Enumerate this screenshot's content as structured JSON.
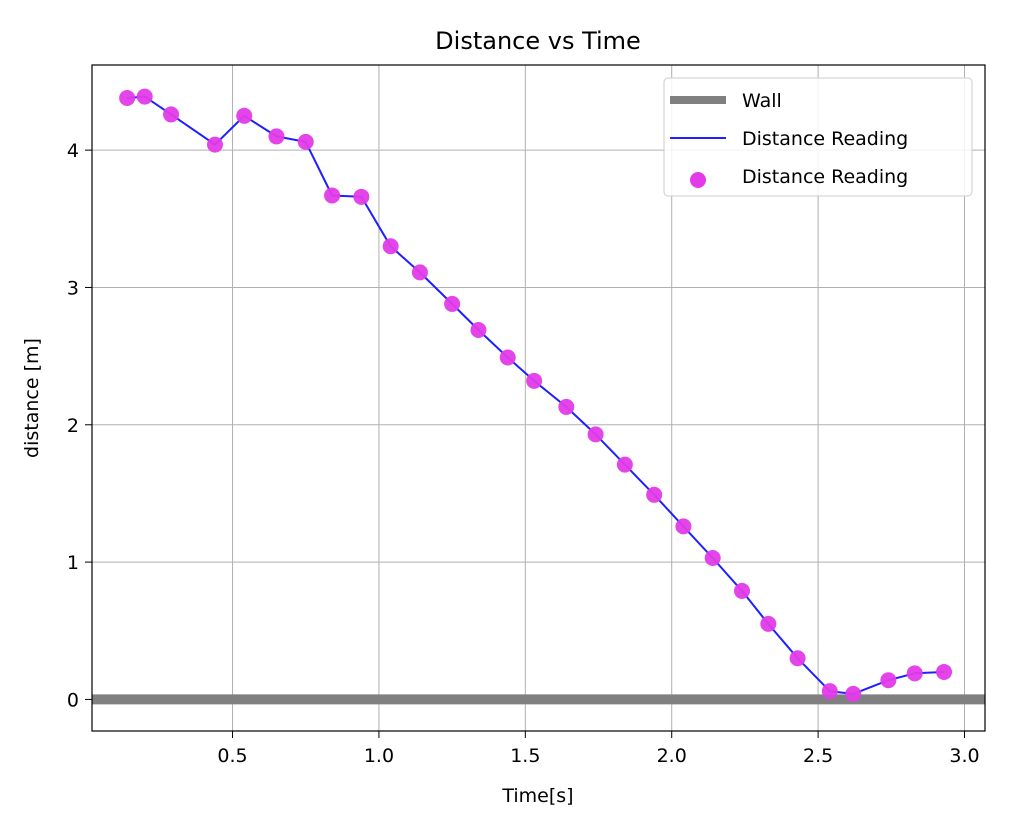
{
  "chart_data": {
    "type": "line",
    "title": "Distance vs Time",
    "xlabel": "Time[s]",
    "ylabel": "distance [m]",
    "xlim": [
      0.02,
      3.07
    ],
    "ylim": [
      -0.23,
      4.62
    ],
    "xticks": [
      0.5,
      1.0,
      1.5,
      2.0,
      2.5,
      3.0
    ],
    "xtick_labels": [
      "0.5",
      "1.0",
      "1.5",
      "2.0",
      "2.5",
      "3.0"
    ],
    "yticks": [
      0,
      1,
      2,
      3,
      4
    ],
    "ytick_labels": [
      "0",
      "1",
      "2",
      "3",
      "4"
    ],
    "grid": true,
    "legend_position": "top-right",
    "wall": {
      "name": "Wall",
      "y": 0,
      "color": "#808080"
    },
    "series": [
      {
        "name": "Distance Reading",
        "kind": "line",
        "color": "#1f1fff",
        "x": [
          0.14,
          0.2,
          0.29,
          0.44,
          0.54,
          0.65,
          0.75,
          0.84,
          0.94,
          1.04,
          1.14,
          1.25,
          1.34,
          1.44,
          1.53,
          1.64,
          1.74,
          1.84,
          1.94,
          2.04,
          2.14,
          2.24,
          2.33,
          2.43,
          2.54,
          2.62,
          2.74,
          2.83,
          2.93
        ],
        "y": [
          4.38,
          4.39,
          4.26,
          4.04,
          4.25,
          4.1,
          4.06,
          3.67,
          3.66,
          3.3,
          3.11,
          2.88,
          2.69,
          2.49,
          2.32,
          2.13,
          1.93,
          1.71,
          1.49,
          1.26,
          1.03,
          0.79,
          0.55,
          0.3,
          0.06,
          0.04,
          0.14,
          0.19,
          0.2
        ]
      },
      {
        "name": "Distance Reading",
        "kind": "scatter",
        "color": "#e33be8",
        "x": [
          0.14,
          0.2,
          0.29,
          0.44,
          0.54,
          0.65,
          0.75,
          0.84,
          0.94,
          1.04,
          1.14,
          1.25,
          1.34,
          1.44,
          1.53,
          1.64,
          1.74,
          1.84,
          1.94,
          2.04,
          2.14,
          2.24,
          2.33,
          2.43,
          2.54,
          2.62,
          2.74,
          2.83,
          2.93
        ],
        "y": [
          4.38,
          4.39,
          4.26,
          4.04,
          4.25,
          4.1,
          4.06,
          3.67,
          3.66,
          3.3,
          3.11,
          2.88,
          2.69,
          2.49,
          2.32,
          2.13,
          1.93,
          1.71,
          1.49,
          1.26,
          1.03,
          0.79,
          0.55,
          0.3,
          0.06,
          0.04,
          0.14,
          0.19,
          0.2
        ]
      }
    ],
    "legend": [
      {
        "label": "Wall",
        "marker": "thick-line",
        "color": "#808080"
      },
      {
        "label": "Distance Reading",
        "marker": "line",
        "color": "#1f1fff"
      },
      {
        "label": "Distance Reading",
        "marker": "dot",
        "color": "#e33be8"
      }
    ]
  }
}
